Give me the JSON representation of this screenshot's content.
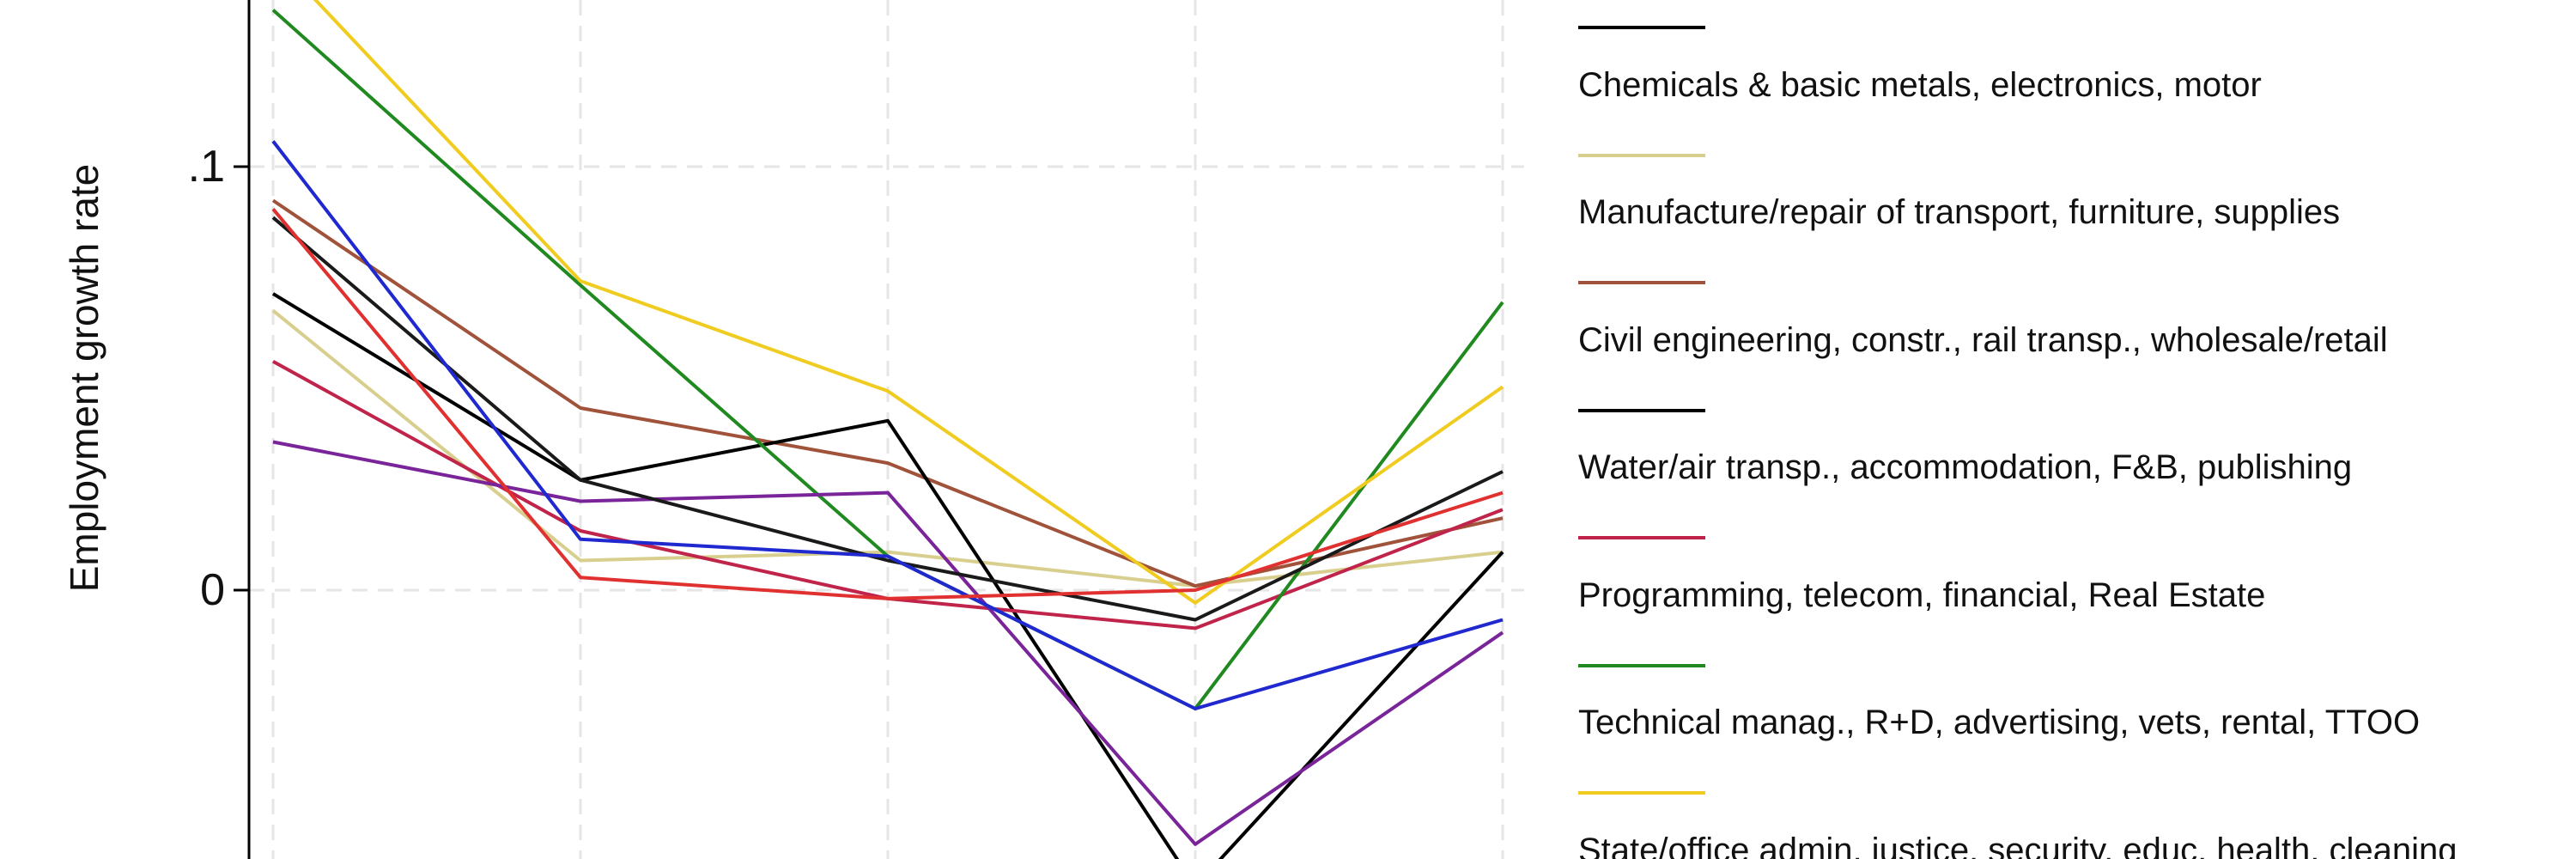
{
  "chart_data": {
    "type": "line",
    "title": "",
    "xlabel": "",
    "ylabel": "Employment growth rate",
    "ylim": [
      -0.065,
      0.138
    ],
    "x": [
      1,
      2,
      3,
      4,
      5
    ],
    "yticks": [
      {
        "value": 0.1,
        "label": ".1"
      },
      {
        "value": 0,
        "label": "0"
      }
    ],
    "grid": true,
    "legend_position": "right",
    "series": [
      {
        "name": "Chemicals & basic metals, electronics, motor",
        "color": "#d8cf8f",
        "values": [
          0.066,
          0.007,
          0.009,
          0.001,
          0.009
        ]
      },
      {
        "name": "Manufacture/repair of transport, furniture, supplies",
        "color": "#a0523a",
        "values": [
          0.092,
          0.043,
          0.03,
          0.001,
          0.017
        ]
      },
      {
        "name": "Civil engineering, constr., rail transp., wholesale/retail",
        "color": "#000000",
        "values": [
          0.07,
          0.026,
          0.04,
          -0.07,
          0.009
        ]
      },
      {
        "name": "Water/air transp., accommodation, F&B, publishing",
        "color": "#c0244a",
        "values": [
          0.054,
          0.014,
          -0.002,
          -0.009,
          0.019
        ]
      },
      {
        "name": "Programming, telecom, financial, Real Estate",
        "color": "#208a20",
        "values": [
          0.137,
          0.072,
          0.008,
          -0.028,
          0.068
        ]
      },
      {
        "name": "Technical manag., R+D, advertising, vets, rental, TTOO",
        "color": "#f0cc20",
        "values": [
          0.15,
          0.073,
          0.047,
          -0.003,
          0.048
        ]
      },
      {
        "name": "State/office admin, justice, security, educ, health, cleaning",
        "color": "#7a249a",
        "values": [
          0.035,
          0.021,
          0.023,
          -0.06,
          -0.01
        ]
      },
      {
        "color": "#1a1a1a",
        "values": [
          0.088,
          0.026,
          0.007,
          -0.007,
          0.028
        ]
      },
      {
        "color": "#2028d0",
        "values": [
          0.106,
          0.012,
          0.008,
          -0.028,
          -0.007
        ]
      },
      {
        "color": "#e03030",
        "values": [
          0.09,
          0.003,
          -0.002,
          0.0,
          0.023
        ]
      }
    ],
    "legend_entries": [
      {
        "label": "",
        "color": "#000000"
      },
      {
        "label": "Chemicals & basic metals, electronics, motor",
        "color": "#d8cf8f"
      },
      {
        "label": "Manufacture/repair of transport, furniture, supplies",
        "color": "#a0523a"
      },
      {
        "label": "Civil engineering, constr., rail transp., wholesale/retail",
        "color": "#000000"
      },
      {
        "label": "Water/air transp., accommodation, F&B, publishing",
        "color": "#c0244a"
      },
      {
        "label": "Programming, telecom, financial, Real Estate",
        "color": "#208a20"
      },
      {
        "label": "Technical manag., R+D, advertising, vets, rental, TTOO",
        "color": "#f0cc20"
      },
      {
        "label": "State/office admin, justice, security, educ, health, cleaning",
        "color": ""
      }
    ]
  }
}
